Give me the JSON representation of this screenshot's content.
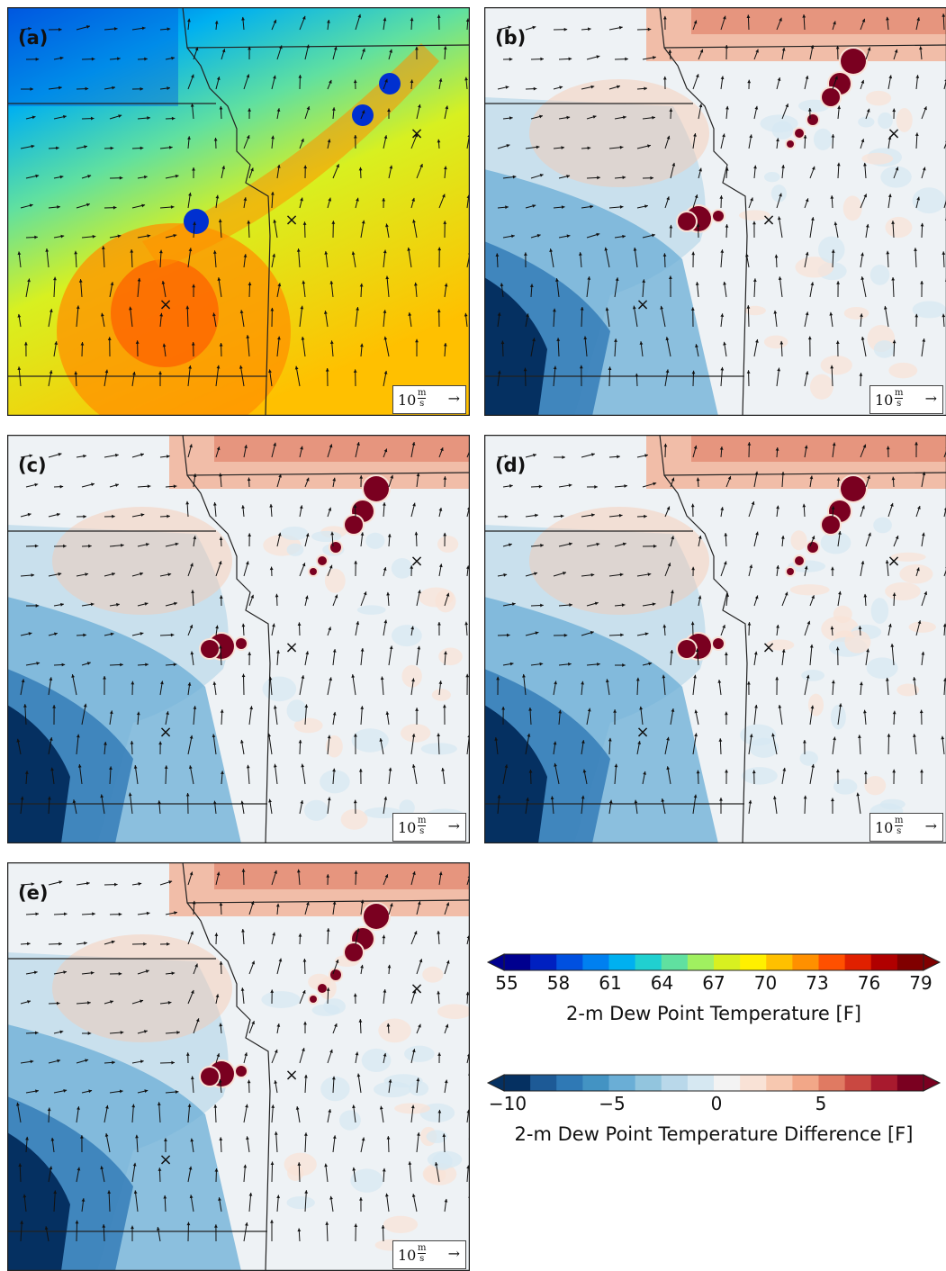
{
  "panels": [
    {
      "label": "(a)",
      "type": "dewpoint",
      "scale_num": "10",
      "scale_unit_top": "m",
      "scale_unit_bottom": "s"
    },
    {
      "label": "(b)",
      "type": "difference",
      "scale_num": "10",
      "scale_unit_top": "m",
      "scale_unit_bottom": "s"
    },
    {
      "label": "(c)",
      "type": "difference",
      "scale_num": "10",
      "scale_unit_top": "m",
      "scale_unit_bottom": "s"
    },
    {
      "label": "(d)",
      "type": "difference",
      "scale_num": "10",
      "scale_unit_top": "m",
      "scale_unit_bottom": "s"
    },
    {
      "label": "(e)",
      "type": "difference",
      "scale_num": "10",
      "scale_unit_top": "m",
      "scale_unit_bottom": "s"
    }
  ],
  "scale_arrow": "→",
  "colorbar_dewpoint": {
    "ticks": [
      "55",
      "58",
      "61",
      "64",
      "67",
      "70",
      "73",
      "76",
      "79"
    ],
    "title": "2-m Dew Point Temperature [F]",
    "colors": [
      "#00008f",
      "#0020c0",
      "#0050e0",
      "#0080f0",
      "#00b0f0",
      "#20d0d0",
      "#60e0a0",
      "#a0f060",
      "#d8f020",
      "#fff000",
      "#ffc000",
      "#ff9000",
      "#ff5000",
      "#e02000",
      "#b00000",
      "#800000"
    ]
  },
  "colorbar_difference": {
    "ticks": [
      "−10",
      "−5",
      "0",
      "5"
    ],
    "title": "2-m Dew Point Temperature Difference [F]",
    "colors": [
      "#053061",
      "#1d5a96",
      "#2f79b5",
      "#4393c3",
      "#6aaed6",
      "#92c5de",
      "#b9d8ea",
      "#d6e8f2",
      "#f3f3f3",
      "#f9e2d6",
      "#f7c8b0",
      "#f2a788",
      "#e07a62",
      "#c94841",
      "#a81a2e",
      "#7a0020"
    ]
  },
  "markers": "×"
}
